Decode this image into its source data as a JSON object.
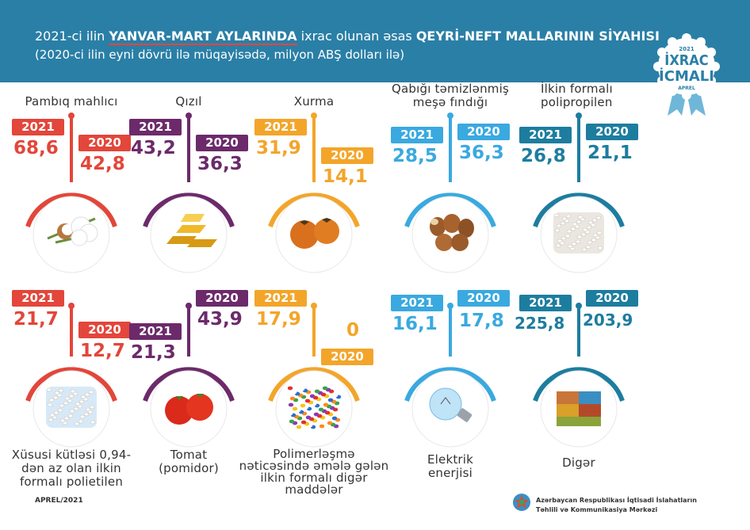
{
  "header": {
    "title_pre": "2021-ci ilin ",
    "title_bold1": "YANVAR-MART AYLARINDA",
    "title_mid": " ixrac olunan əsas ",
    "title_bold2": "QEYRİ-NEFT MALLARININ SİYAHISI",
    "subtitle": "(2020-ci ilin eyni dövrü ilə müqayisədə, milyon ABŞ dolları ilə)"
  },
  "badge": {
    "year": "2021",
    "line1": "İXRAC",
    "line2": "İCMALI",
    "month": "APREL"
  },
  "labels": {
    "y2021": "2021",
    "y2020": "2020"
  },
  "items": [
    {
      "name": "Pambıq mahlıcı",
      "v2021": "68,6",
      "v2020": "42,8",
      "color": "#e3463a",
      "icon": "cotton-icon"
    },
    {
      "name": "Qızıl",
      "v2021": "43,2",
      "v2020": "36,3",
      "color": "#6c2a6a",
      "icon": "gold-bars-icon"
    },
    {
      "name": "Xurma",
      "v2021": "31,9",
      "v2020": "14,1",
      "color": "#f3a52a",
      "icon": "persimmon-icon"
    },
    {
      "name": "Qabığı təmizlənmiş meşə fındığı",
      "v2021": "28,5",
      "v2020": "36,3",
      "color": "#3aa9e0",
      "icon": "hazelnut-icon"
    },
    {
      "name": "İlkin formalı polipropilen",
      "v2021": "26,8",
      "v2020": "21,1",
      "color": "#1d7d9f",
      "icon": "polypropylene-icon"
    },
    {
      "name": "Xüsusi kütləsi 0,94-dən az olan ilkin formalı polietilen",
      "v2021": "21,7",
      "v2020": "12,7",
      "color": "#e3463a",
      "icon": "polyethylene-icon"
    },
    {
      "name": "Tomat (pomidor)",
      "v2021": "21,3",
      "v2020": "43,9",
      "color": "#6c2a6a",
      "icon": "tomato-icon"
    },
    {
      "name": "Polimerləşmə nəticəsində əmələ gələn ilkin formalı digər maddələr",
      "v2021": "17,9",
      "v2020": "0",
      "color": "#f3a52a",
      "icon": "polymer-granules-icon"
    },
    {
      "name": "Elektrik enerjisi",
      "v2021": "16,1",
      "v2020": "17,8",
      "color": "#3aa9e0",
      "icon": "light-bulb-icon"
    },
    {
      "name": "Digər",
      "v2021": "225,8",
      "v2020": "203,9",
      "color": "#1d7d9f",
      "icon": "containers-icon"
    }
  ],
  "footer": {
    "date": "APREL/2021",
    "org_line1": "Azərbaycan Respublikası İqtisadi İslahatların",
    "org_line2": "Təhlili və Kommunikasiya Mərkəzi"
  }
}
